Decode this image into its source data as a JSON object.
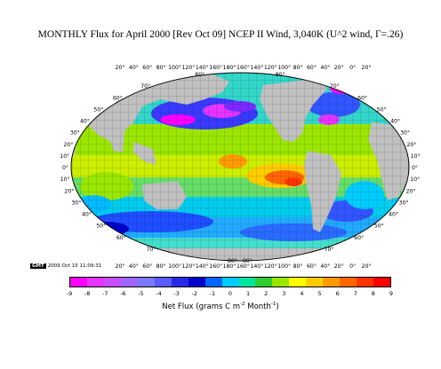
{
  "title": "MONTHLY Flux for April 2000 [Rev Oct 09] NCEP II Wind, 3,040K (U^2 wind, Γ=.26)",
  "lon_labels": [
    "20°",
    "40°",
    "60°",
    "80°",
    "100°",
    "120°",
    "140°",
    "160°",
    "180°",
    "160°",
    "140°",
    "120°",
    "100°",
    "80°",
    "60°",
    "40°",
    "20°",
    "0°",
    "20°"
  ],
  "lat_labels": [
    "80°",
    "70°",
    "60°",
    "50°",
    "40°",
    "30°",
    "20°",
    "10°",
    "0°",
    "10°",
    "20°",
    "30°",
    "40°",
    "50°",
    "60°",
    "70°",
    "80°"
  ],
  "gmt": {
    "badge": "GMT",
    "timestamp": "2009 Oct 15 11:09:31"
  },
  "colorbar": {
    "ticks": [
      "-9",
      "-8",
      "-7",
      "-6",
      "-5",
      "-4",
      "-3",
      "-2",
      "-1",
      "0",
      "1",
      "2",
      "3",
      "4",
      "5",
      "6",
      "7",
      "8",
      "9"
    ],
    "label_main": "Net Flux (grams C m",
    "label_sup1": "-2",
    "label_mid": " Month",
    "label_sup2": "-1",
    "label_end": ")",
    "range": [
      -9,
      9
    ],
    "colors": [
      "#ff00ff",
      "#e633ff",
      "#c84dff",
      "#a066ff",
      "#7a7aff",
      "#5a5aff",
      "#2a2ae6",
      "#0000cc",
      "#0066ff",
      "#00ccff",
      "#00e6a0",
      "#33cc33",
      "#99e600",
      "#ffff00",
      "#ffcc00",
      "#ff9900",
      "#ff6600",
      "#ff3300",
      "#ff0000"
    ]
  }
}
